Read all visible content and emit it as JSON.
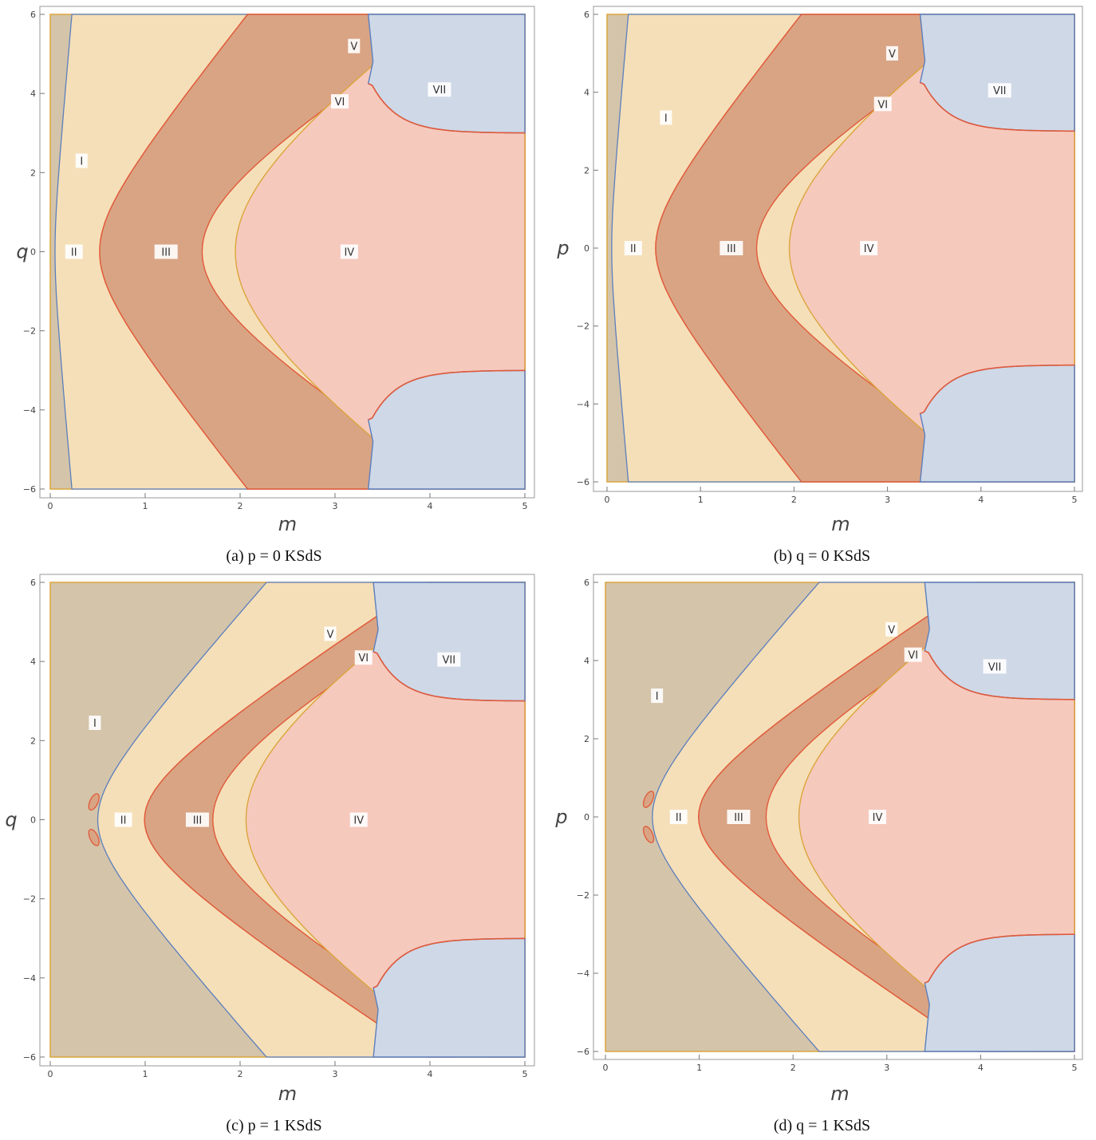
{
  "colors": {
    "region_I": "#d4c4aa",
    "region_light": "#f5dfb8",
    "region_dark": "#d9a484",
    "region_IV": "#f6c9bd",
    "region_VII": "#cfd8e6",
    "edge_red": "#e05a3a",
    "edge_orange": "#dba53c",
    "edge_blue": "#5b7fbd"
  },
  "panels": [
    {
      "caption": "(a) p = 0 KSdS",
      "xlabel": "m",
      "ylabel": "q",
      "x_ticks": [
        "0",
        "1",
        "2",
        "3",
        "4",
        "5"
      ],
      "y_ticks": [
        "6",
        "4",
        "2",
        "0",
        "−2",
        "−4",
        "−6"
      ],
      "regions": [
        {
          "label": "I",
          "m": 0.33,
          "v": 2.3
        },
        {
          "label": "II",
          "m": 0.25,
          "v": 0.0
        },
        {
          "label": "III",
          "m": 1.22,
          "v": 0.0
        },
        {
          "label": "IV",
          "m": 3.15,
          "v": 0.0
        },
        {
          "label": "V",
          "m": 3.2,
          "v": 5.2
        },
        {
          "label": "VI",
          "m": 3.05,
          "v": 3.8
        },
        {
          "label": "VII",
          "m": 4.1,
          "v": 4.1
        }
      ]
    },
    {
      "caption": "(b) q = 0 KSdS",
      "xlabel": "m",
      "ylabel": "p",
      "x_ticks": [
        "0",
        "1",
        "2",
        "3",
        "4",
        "5"
      ],
      "y_ticks": [
        "6",
        "4",
        "2",
        "0",
        "−2",
        "−4",
        "−6"
      ],
      "regions": [
        {
          "label": "I",
          "m": 0.63,
          "v": 3.35
        },
        {
          "label": "II",
          "m": 0.28,
          "v": 0.0
        },
        {
          "label": "III",
          "m": 1.33,
          "v": 0.0
        },
        {
          "label": "IV",
          "m": 2.8,
          "v": 0.0
        },
        {
          "label": "V",
          "m": 3.05,
          "v": 5.0
        },
        {
          "label": "VI",
          "m": 2.95,
          "v": 3.7
        },
        {
          "label": "VII",
          "m": 4.2,
          "v": 4.05
        }
      ]
    },
    {
      "caption": "(c) p = 1 KSdS",
      "xlabel": "m",
      "ylabel": "q",
      "x_ticks": [
        "0",
        "1",
        "2",
        "3",
        "4",
        "5"
      ],
      "y_ticks": [
        "6",
        "4",
        "2",
        "0",
        "−2",
        "−4",
        "−6"
      ],
      "regions": [
        {
          "label": "I",
          "m": 0.47,
          "v": 2.45
        },
        {
          "label": "II",
          "m": 0.77,
          "v": 0.0
        },
        {
          "label": "III",
          "m": 1.55,
          "v": 0.0
        },
        {
          "label": "IV",
          "m": 3.25,
          "v": 0.0
        },
        {
          "label": "V",
          "m": 2.95,
          "v": 4.7
        },
        {
          "label": "VI",
          "m": 3.3,
          "v": 4.1
        },
        {
          "label": "VII",
          "m": 4.2,
          "v": 4.05
        }
      ]
    },
    {
      "caption": "(d) q = 1 KSdS",
      "xlabel": "m",
      "ylabel": "p",
      "x_ticks": [
        "0",
        "1",
        "2",
        "3",
        "4",
        "5"
      ],
      "y_ticks": [
        "6",
        "4",
        "2",
        "0",
        "−2",
        "−4",
        "−6"
      ],
      "regions": [
        {
          "label": "I",
          "m": 0.55,
          "v": 3.1
        },
        {
          "label": "II",
          "m": 0.78,
          "v": 0.0
        },
        {
          "label": "III",
          "m": 1.42,
          "v": 0.0
        },
        {
          "label": "IV",
          "m": 2.9,
          "v": 0.0
        },
        {
          "label": "V",
          "m": 3.05,
          "v": 4.8
        },
        {
          "label": "VI",
          "m": 3.28,
          "v": 4.15
        },
        {
          "label": "VII",
          "m": 4.15,
          "v": 3.85
        }
      ]
    }
  ]
}
